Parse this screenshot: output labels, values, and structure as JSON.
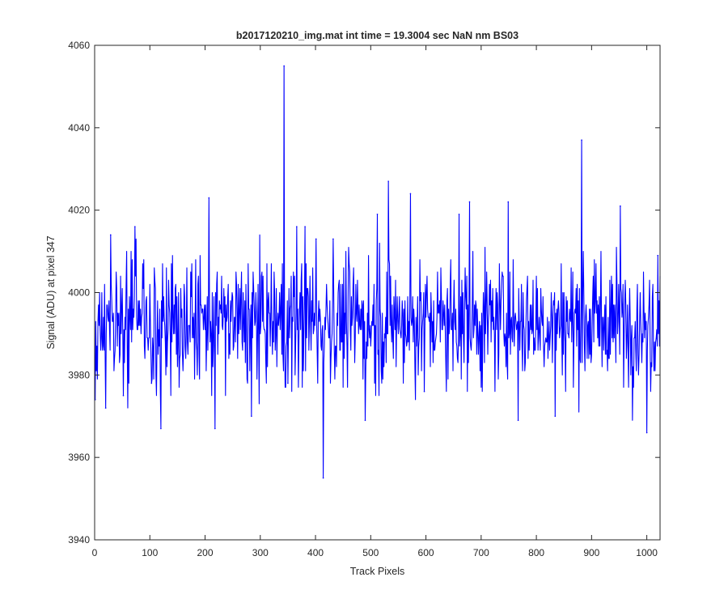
{
  "chart_data": {
    "type": "line",
    "title": "b2017120210_img.mat int time = 19.3004 sec  NaN nm BS03",
    "xlabel": "Track Pixels",
    "ylabel": "Signal (ADU) at pixel 347",
    "xlim": [
      0,
      1024
    ],
    "ylim": [
      3940,
      4060
    ],
    "xticks": [
      0,
      100,
      200,
      300,
      400,
      500,
      600,
      700,
      800,
      900,
      1000
    ],
    "yticks": [
      3940,
      3960,
      3980,
      4000,
      4020,
      4040,
      4060
    ],
    "grid": false,
    "legend": "none",
    "series_color": "#0000ff",
    "series": [
      {
        "x_start": 1,
        "x_step": 1,
        "noise_mean": 3993,
        "noise_sd": 7.5,
        "count": 1024,
        "highlight_points": [
          {
            "x": 1,
            "y": 3974
          },
          {
            "x": 20,
            "y": 3972
          },
          {
            "x": 29,
            "y": 4014
          },
          {
            "x": 52,
            "y": 3975
          },
          {
            "x": 73,
            "y": 4016
          },
          {
            "x": 103,
            "y": 3978
          },
          {
            "x": 120,
            "y": 3967
          },
          {
            "x": 207,
            "y": 4023
          },
          {
            "x": 218,
            "y": 3967
          },
          {
            "x": 284,
            "y": 3970
          },
          {
            "x": 343,
            "y": 4055
          },
          {
            "x": 350,
            "y": 3978
          },
          {
            "x": 366,
            "y": 4016
          },
          {
            "x": 381,
            "y": 4016
          },
          {
            "x": 401,
            "y": 4013
          },
          {
            "x": 414,
            "y": 3955
          },
          {
            "x": 432,
            "y": 4013
          },
          {
            "x": 490,
            "y": 3969
          },
          {
            "x": 512,
            "y": 4019
          },
          {
            "x": 532,
            "y": 4027
          },
          {
            "x": 572,
            "y": 4024
          },
          {
            "x": 597,
            "y": 3976
          },
          {
            "x": 660,
            "y": 4019
          },
          {
            "x": 679,
            "y": 4022
          },
          {
            "x": 749,
            "y": 4022
          },
          {
            "x": 767,
            "y": 3969
          },
          {
            "x": 834,
            "y": 3970
          },
          {
            "x": 882,
            "y": 4037
          },
          {
            "x": 952,
            "y": 4021
          },
          {
            "x": 1000,
            "y": 3966
          },
          {
            "x": 1020,
            "y": 4009
          }
        ]
      }
    ]
  }
}
